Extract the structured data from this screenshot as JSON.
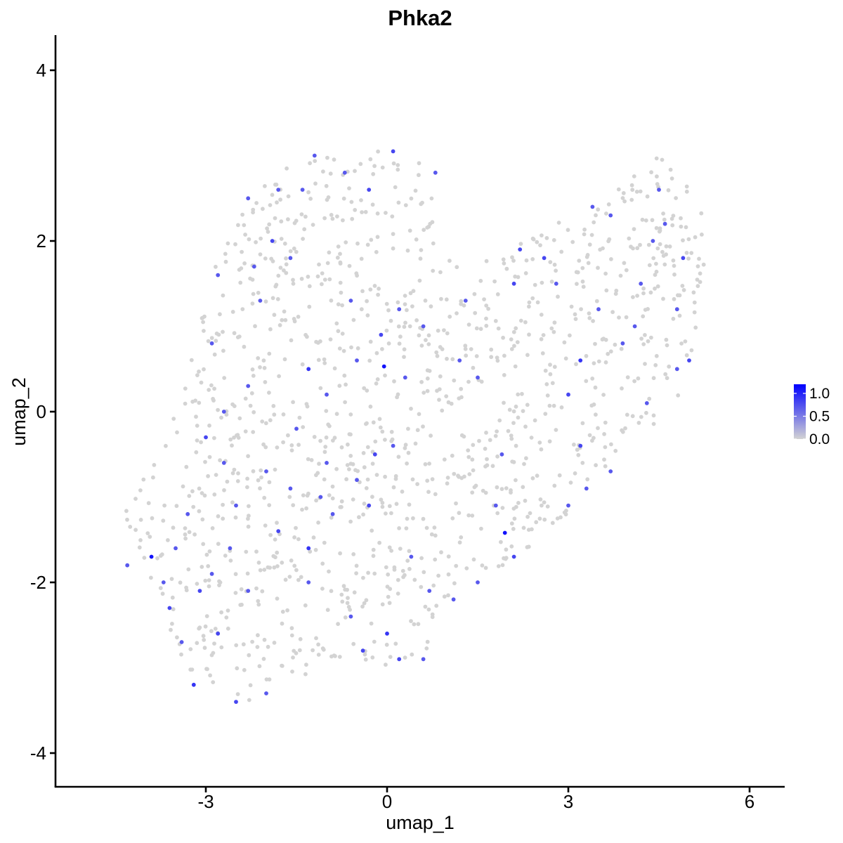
{
  "chart_data": {
    "type": "scatter",
    "title": "Phka2",
    "xlabel": "umap_1",
    "ylabel": "umap_2",
    "xlim": [
      -5.6,
      6.6
    ],
    "ylim": [
      -4.4,
      4.4
    ],
    "xticks": [
      -3,
      0,
      3,
      6
    ],
    "yticks": [
      -4,
      -2,
      0,
      2,
      4
    ],
    "xtick_labels": [
      "-3",
      "0",
      "3",
      "6"
    ],
    "ytick_labels": [
      "-4",
      "-2",
      "0",
      "2",
      "4"
    ],
    "grid": false,
    "color_scale": {
      "low": "#d3d3d3",
      "high": "#0000ff",
      "min": 0.0,
      "max": 1.2,
      "ticks": [
        0.0,
        0.5,
        1.0
      ],
      "tick_labels": [
        "0.0",
        "0.5",
        "1.0"
      ],
      "legend_position": "right"
    },
    "expressing_points": [
      [
        -4.3,
        -1.8,
        0.7
      ],
      [
        -3.9,
        -1.7,
        1.1
      ],
      [
        -3.6,
        -2.3,
        0.8
      ],
      [
        -3.4,
        -2.7,
        0.7
      ],
      [
        -3.2,
        -3.2,
        0.9
      ],
      [
        -2.8,
        -2.6,
        0.8
      ],
      [
        -2.5,
        -3.4,
        0.8
      ],
      [
        -2.0,
        -3.3,
        0.7
      ],
      [
        -3.0,
        -0.3,
        0.8
      ],
      [
        -2.7,
        -0.6,
        0.7
      ],
      [
        -2.5,
        -1.1,
        0.7
      ],
      [
        -2.9,
        -1.9,
        0.7
      ],
      [
        -3.1,
        -2.1,
        0.8
      ],
      [
        -2.3,
        -2.1,
        0.7
      ],
      [
        -1.8,
        -1.4,
        0.8
      ],
      [
        -1.3,
        -1.6,
        0.9
      ],
      [
        -1.3,
        -2.0,
        0.7
      ],
      [
        -0.6,
        -2.4,
        0.7
      ],
      [
        -0.4,
        -2.8,
        0.8
      ],
      [
        0.0,
        -2.6,
        0.9
      ],
      [
        0.2,
        -2.9,
        0.8
      ],
      [
        0.6,
        -2.9,
        0.7
      ],
      [
        -2.3,
        0.3,
        0.7
      ],
      [
        -1.5,
        -0.2,
        0.7
      ],
      [
        -1.0,
        -0.6,
        0.7
      ],
      [
        -0.5,
        -0.8,
        0.7
      ],
      [
        -0.3,
        -1.1,
        0.8
      ],
      [
        -0.2,
        -0.5,
        0.8
      ],
      [
        -0.05,
        0.53,
        1.1
      ],
      [
        -1.3,
        0.5,
        0.9
      ],
      [
        -1.0,
        0.2,
        0.7
      ],
      [
        -0.5,
        0.6,
        0.7
      ],
      [
        -0.1,
        0.9,
        0.8
      ],
      [
        -2.1,
        1.3,
        0.7
      ],
      [
        -2.2,
        1.7,
        0.7
      ],
      [
        -1.9,
        2.0,
        0.8
      ],
      [
        -2.3,
        2.5,
        0.7
      ],
      [
        -1.8,
        2.6,
        0.7
      ],
      [
        -1.4,
        2.6,
        0.7
      ],
      [
        -1.2,
        3.0,
        0.7
      ],
      [
        -0.7,
        2.8,
        0.7
      ],
      [
        -0.3,
        2.6,
        0.8
      ],
      [
        0.1,
        3.05,
        0.8
      ],
      [
        0.8,
        2.8,
        0.7
      ],
      [
        -1.6,
        1.8,
        0.7
      ],
      [
        -0.6,
        1.3,
        0.7
      ],
      [
        0.2,
        1.2,
        0.7
      ],
      [
        -2.8,
        1.6,
        0.7
      ],
      [
        -2.9,
        0.8,
        0.7
      ],
      [
        1.2,
        0.6,
        0.7
      ],
      [
        1.5,
        0.4,
        0.7
      ],
      [
        1.9,
        -0.5,
        0.7
      ],
      [
        1.8,
        -1.1,
        0.7
      ],
      [
        1.95,
        -1.42,
        1.1
      ],
      [
        2.1,
        -1.7,
        0.8
      ],
      [
        1.5,
        -2.0,
        0.7
      ],
      [
        1.1,
        -2.2,
        0.7
      ],
      [
        0.7,
        -2.1,
        0.7
      ],
      [
        0.4,
        -1.7,
        0.7
      ],
      [
        0.1,
        -0.4,
        0.7
      ],
      [
        0.3,
        0.4,
        0.7
      ],
      [
        0.6,
        1.0,
        0.7
      ],
      [
        1.3,
        1.3,
        0.7
      ],
      [
        2.1,
        1.5,
        0.8
      ],
      [
        2.2,
        1.9,
        0.8
      ],
      [
        2.6,
        1.8,
        0.8
      ],
      [
        2.8,
        1.5,
        0.7
      ],
      [
        3.0,
        0.2,
        0.8
      ],
      [
        3.2,
        -0.4,
        0.8
      ],
      [
        3.3,
        -0.9,
        0.7
      ],
      [
        3.0,
        -1.1,
        0.7
      ],
      [
        3.7,
        -0.7,
        0.7
      ],
      [
        3.2,
        0.6,
        0.9
      ],
      [
        3.5,
        1.2,
        0.7
      ],
      [
        3.9,
        0.8,
        0.7
      ],
      [
        4.2,
        1.5,
        0.7
      ],
      [
        4.4,
        2.0,
        0.7
      ],
      [
        4.6,
        2.2,
        0.7
      ],
      [
        4.9,
        1.8,
        0.8
      ],
      [
        5.0,
        0.6,
        0.8
      ],
      [
        4.8,
        1.2,
        0.7
      ],
      [
        4.5,
        2.6,
        0.7
      ],
      [
        3.4,
        2.4,
        0.7
      ],
      [
        3.7,
        2.3,
        0.7
      ],
      [
        4.1,
        1.0,
        0.7
      ],
      [
        4.8,
        0.5,
        0.7
      ],
      [
        4.3,
        0.1,
        0.7
      ],
      [
        -0.9,
        -1.2,
        0.7
      ],
      [
        -1.6,
        -0.9,
        0.7
      ],
      [
        -2.0,
        -0.7,
        0.7
      ],
      [
        -2.6,
        -1.6,
        0.7
      ],
      [
        -3.3,
        -1.2,
        0.7
      ],
      [
        -3.5,
        -1.6,
        0.7
      ],
      [
        -3.7,
        -2.0,
        0.7
      ],
      [
        -2.7,
        0.0,
        0.7
      ],
      [
        -1.1,
        -1.0,
        0.7
      ]
    ]
  }
}
